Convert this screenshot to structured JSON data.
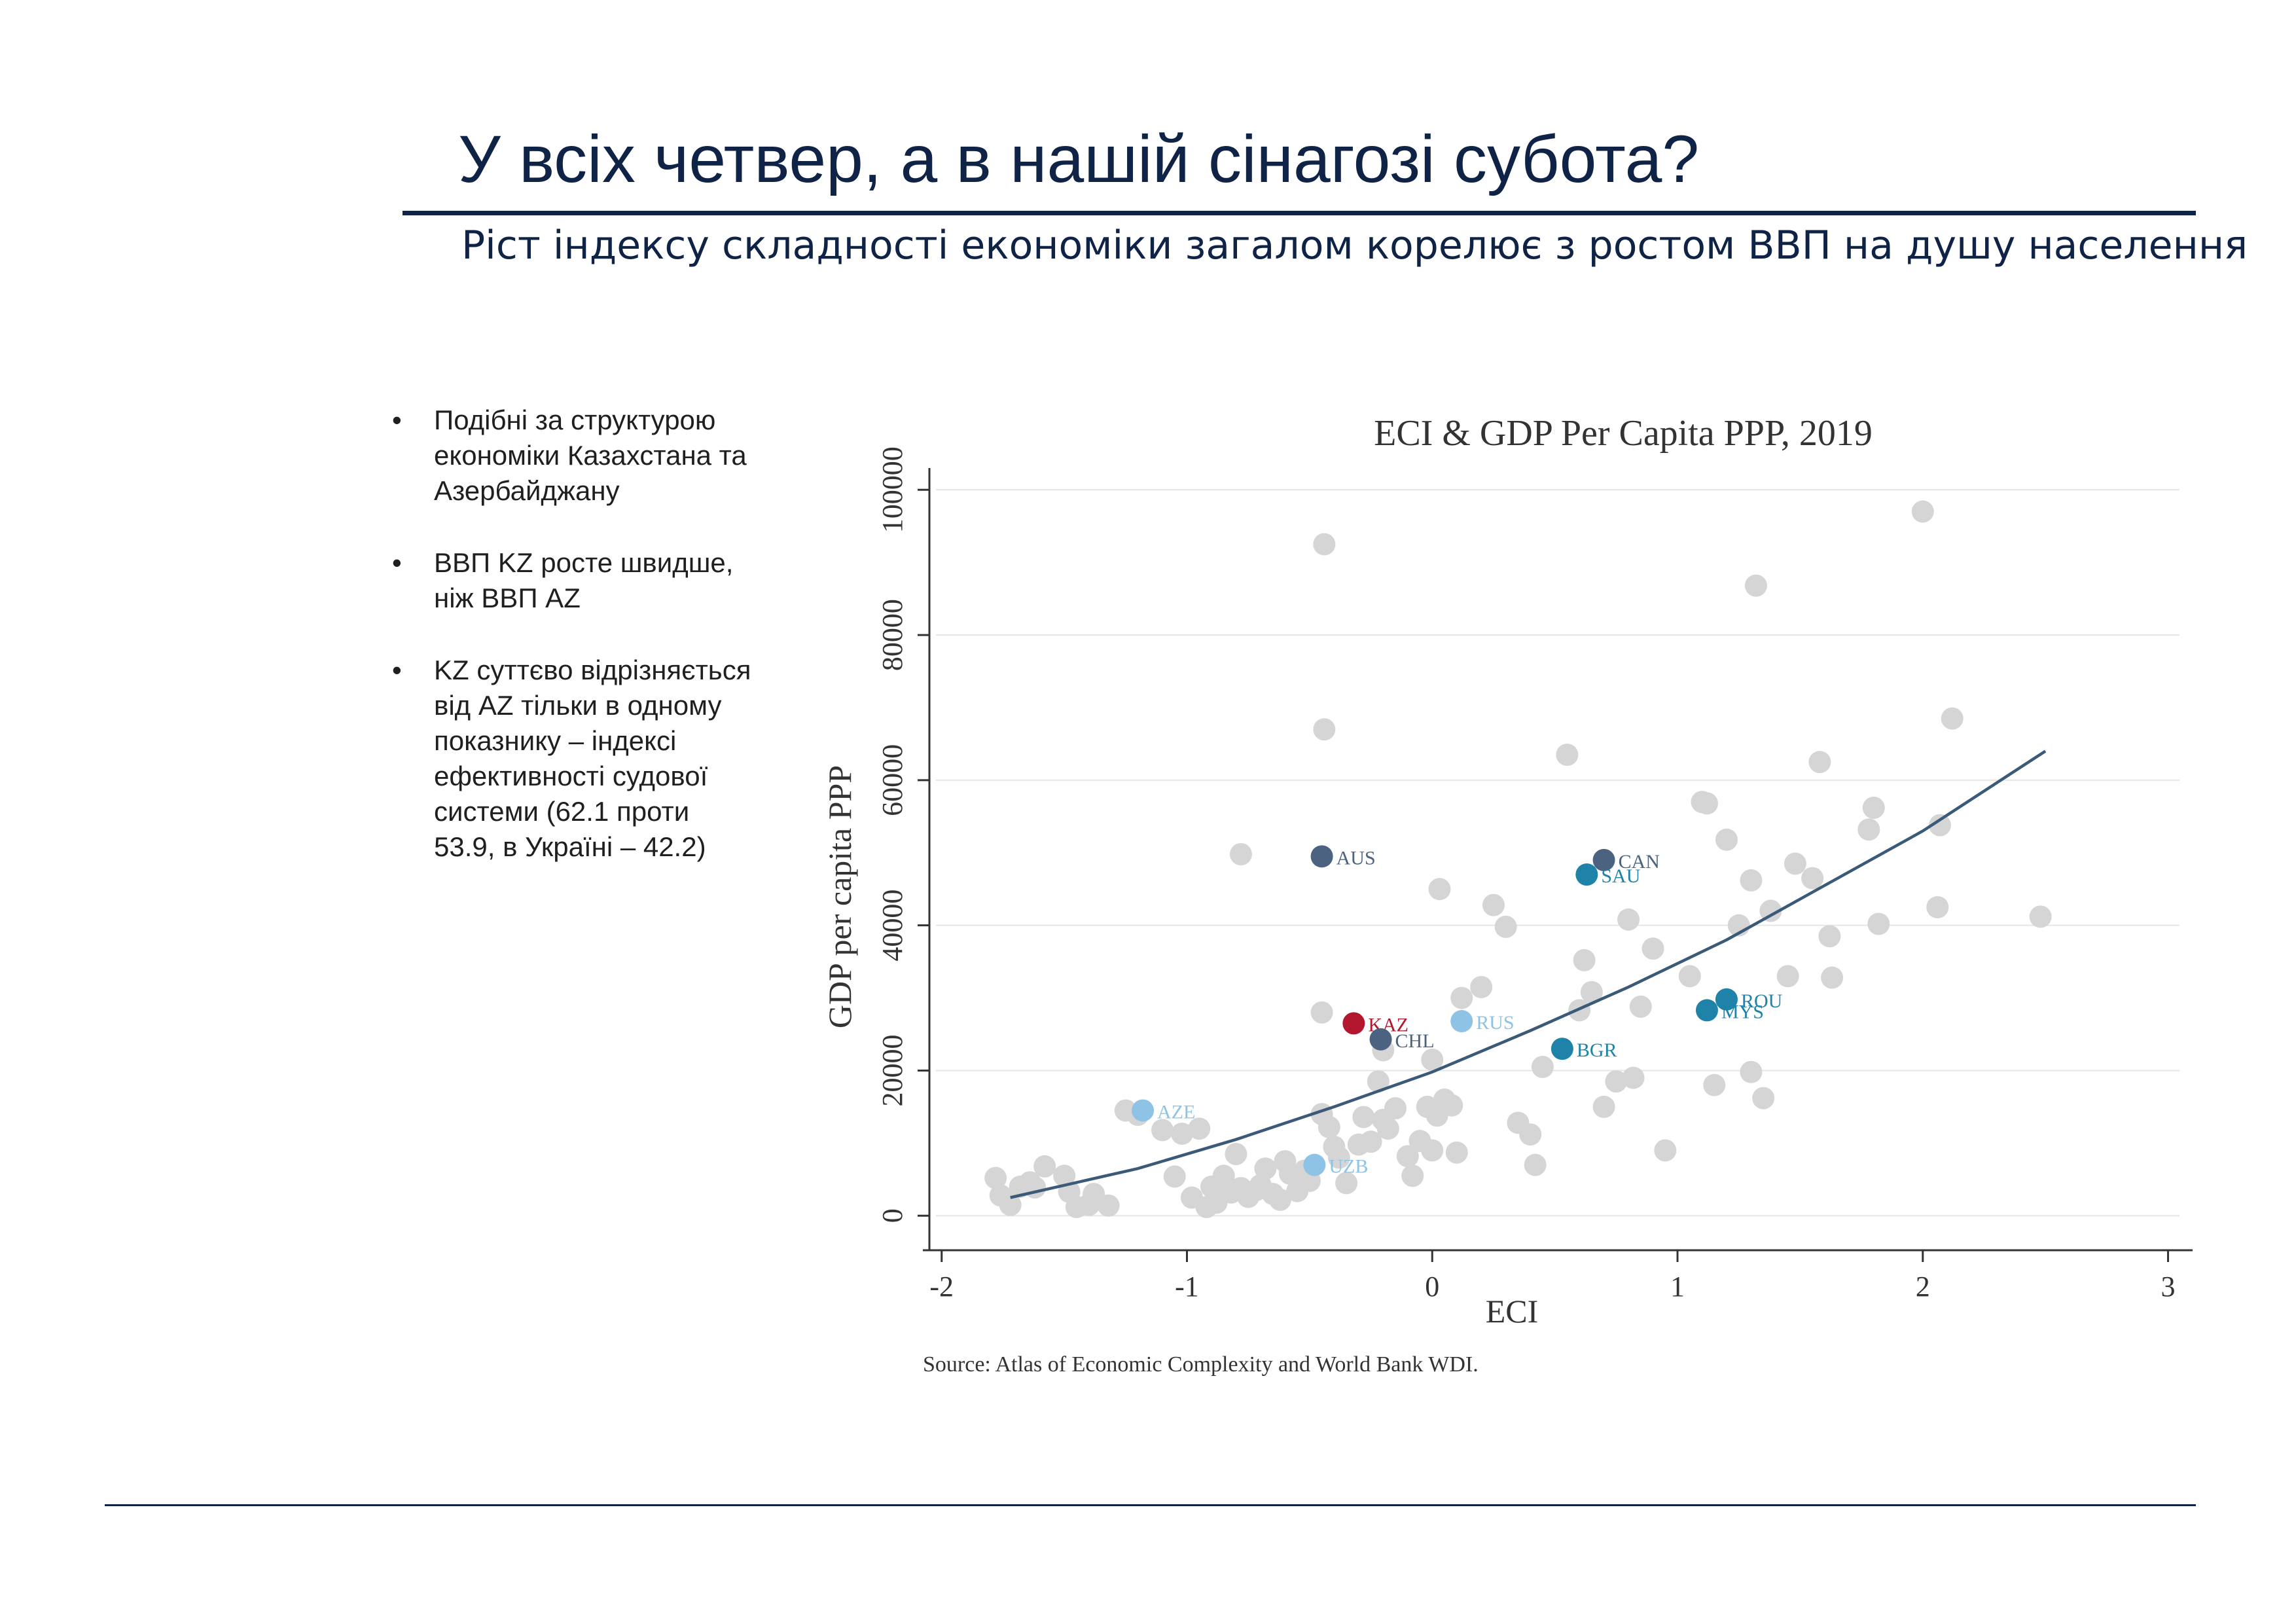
{
  "slide": {
    "title": "У всіх четвер, а в нашій сінагозі субота?",
    "subtitle": "Ріст індексу складності економіки загалом корелює з ростом ВВП на душу населення",
    "bullets": [
      "Подібні за структурою економіки Казахстана та Азербайджану",
      "ВВП KZ росте швидше, ніж ВВП AZ",
      "KZ суттєво відрізняється від AZ тільки в одному показнику – індексі ефективності судової системи (62.1 проти 53.9, в Україні – 42.2)"
    ],
    "bullet_glyph": "•"
  },
  "chart_data": {
    "type": "scatter",
    "title": "ECI & GDP Per Capita PPP, 2019",
    "xlabel": "ECI",
    "ylabel": "GDP per capita PPP",
    "source": "Source: Atlas of Economic Complexity and World Bank WDI.",
    "xlim": [
      -2.05,
      3.1
    ],
    "ylim": [
      -2500,
      103000
    ],
    "xticks": [
      -2,
      -1,
      0,
      1,
      2,
      3
    ],
    "xtick_labels": [
      "-2",
      "-1",
      "0",
      "1",
      "2",
      "3"
    ],
    "yticks": [
      0,
      20000,
      40000,
      60000,
      80000,
      100000
    ],
    "ytick_labels": [
      "0",
      "20000",
      "40000",
      "60000",
      "80000",
      "100000"
    ],
    "grid": true,
    "colors": {
      "other": "#d5d5d5",
      "fit": "#3a5a78",
      "axis": "#333333",
      "grid": "#e6e6e6"
    },
    "fit_line": {
      "x": [
        -1.72,
        -1.2,
        -0.8,
        -0.4,
        0.0,
        0.4,
        0.8,
        1.2,
        1.6,
        2.0,
        2.5
      ],
      "y": [
        2500,
        6500,
        10500,
        15000,
        19800,
        25500,
        31500,
        38000,
        45500,
        53000,
        64000
      ]
    },
    "highlighted": [
      {
        "label": "AUS",
        "x": -0.45,
        "y": 49500,
        "color": "#4b6281"
      },
      {
        "label": "CAN",
        "x": 0.7,
        "y": 49000,
        "color": "#4b6281"
      },
      {
        "label": "SAU",
        "x": 0.63,
        "y": 47000,
        "color": "#1f82a8"
      },
      {
        "label": "KAZ",
        "x": -0.32,
        "y": 26500,
        "color": "#b3172f"
      },
      {
        "label": "CHL",
        "x": -0.21,
        "y": 24300,
        "color": "#4b6281"
      },
      {
        "label": "RUS",
        "x": 0.12,
        "y": 26800,
        "color": "#8ec3e6"
      },
      {
        "label": "ROU",
        "x": 1.2,
        "y": 29800,
        "color": "#1f82a8"
      },
      {
        "label": "MYS",
        "x": 1.12,
        "y": 28300,
        "color": "#1f82a8"
      },
      {
        "label": "BGR",
        "x": 0.53,
        "y": 23000,
        "color": "#1f82a8"
      },
      {
        "label": "AZE",
        "x": -1.18,
        "y": 14500,
        "color": "#8ec3e6"
      },
      {
        "label": "UZB",
        "x": -0.48,
        "y": 7000,
        "color": "#8ec3e6"
      }
    ],
    "points": [
      [
        -1.78,
        5200
      ],
      [
        -1.76,
        2800
      ],
      [
        -1.72,
        1500
      ],
      [
        -1.68,
        4000
      ],
      [
        -1.64,
        4600
      ],
      [
        -1.62,
        3900
      ],
      [
        -1.58,
        6800
      ],
      [
        -1.5,
        5500
      ],
      [
        -1.48,
        3300
      ],
      [
        -1.45,
        1200
      ],
      [
        -1.4,
        1500
      ],
      [
        -1.38,
        3000
      ],
      [
        -1.32,
        1400
      ],
      [
        -1.25,
        14500
      ],
      [
        -1.2,
        13900
      ],
      [
        -1.1,
        11800
      ],
      [
        -1.05,
        5400
      ],
      [
        -1.02,
        11300
      ],
      [
        -0.98,
        2500
      ],
      [
        -0.95,
        12000
      ],
      [
        -0.92,
        1200
      ],
      [
        -0.9,
        4000
      ],
      [
        -0.88,
        1800
      ],
      [
        -0.85,
        5500
      ],
      [
        -0.82,
        3200
      ],
      [
        -0.8,
        8500
      ],
      [
        -0.78,
        3800
      ],
      [
        -0.75,
        2600
      ],
      [
        -0.72,
        3500
      ],
      [
        -0.7,
        4200
      ],
      [
        -0.68,
        6500
      ],
      [
        -0.65,
        3000
      ],
      [
        -0.62,
        2200
      ],
      [
        -0.6,
        7500
      ],
      [
        -0.58,
        5800
      ],
      [
        -0.55,
        3400
      ],
      [
        -0.52,
        6200
      ],
      [
        -0.5,
        4800
      ],
      [
        -0.45,
        14000
      ],
      [
        -0.42,
        12200
      ],
      [
        -0.4,
        9500
      ],
      [
        -0.38,
        8000
      ],
      [
        -0.35,
        4500
      ],
      [
        -0.3,
        9800
      ],
      [
        -0.28,
        13600
      ],
      [
        -0.25,
        10200
      ],
      [
        -0.22,
        18500
      ],
      [
        -0.2,
        13200
      ],
      [
        -0.18,
        12000
      ],
      [
        -0.1,
        8200
      ],
      [
        -0.08,
        5500
      ],
      [
        -0.05,
        10300
      ],
      [
        -0.02,
        15000
      ],
      [
        0.0,
        9000
      ],
      [
        0.02,
        13800
      ],
      [
        0.05,
        16000
      ],
      [
        0.08,
        15200
      ],
      [
        0.1,
        8700
      ],
      [
        0.12,
        30000
      ],
      [
        0.2,
        31500
      ],
      [
        0.25,
        42800
      ],
      [
        0.3,
        39800
      ],
      [
        0.35,
        12800
      ],
      [
        0.4,
        11200
      ],
      [
        0.45,
        20500
      ],
      [
        0.55,
        63500
      ],
      [
        0.6,
        28300
      ],
      [
        0.62,
        35200
      ],
      [
        0.65,
        30800
      ],
      [
        0.7,
        15000
      ],
      [
        0.75,
        18500
      ],
      [
        0.8,
        40800
      ],
      [
        0.82,
        19000
      ],
      [
        0.85,
        28800
      ],
      [
        0.9,
        36800
      ],
      [
        0.95,
        9000
      ],
      [
        1.05,
        33000
      ],
      [
        1.1,
        57000
      ],
      [
        1.12,
        56800
      ],
      [
        1.15,
        18000
      ],
      [
        1.2,
        51800
      ],
      [
        1.25,
        40000
      ],
      [
        1.3,
        46200
      ],
      [
        1.3,
        19800
      ],
      [
        1.32,
        86800
      ],
      [
        1.35,
        16200
      ],
      [
        1.38,
        42000
      ],
      [
        1.45,
        33000
      ],
      [
        1.48,
        48500
      ],
      [
        1.55,
        46500
      ],
      [
        1.58,
        62500
      ],
      [
        1.62,
        38500
      ],
      [
        1.63,
        32800
      ],
      [
        1.78,
        53200
      ],
      [
        1.8,
        56200
      ],
      [
        1.82,
        40200
      ],
      [
        2.0,
        97000
      ],
      [
        2.06,
        42500
      ],
      [
        2.07,
        53800
      ],
      [
        2.12,
        68500
      ],
      [
        2.48,
        41200
      ],
      [
        -0.44,
        92500
      ],
      [
        -0.44,
        67000
      ],
      [
        -0.78,
        49800
      ],
      [
        0.03,
        45000
      ],
      [
        -0.45,
        28000
      ],
      [
        -0.2,
        22800
      ],
      [
        0.0,
        21500
      ],
      [
        -0.15,
        14800
      ],
      [
        0.42,
        7000
      ]
    ]
  }
}
